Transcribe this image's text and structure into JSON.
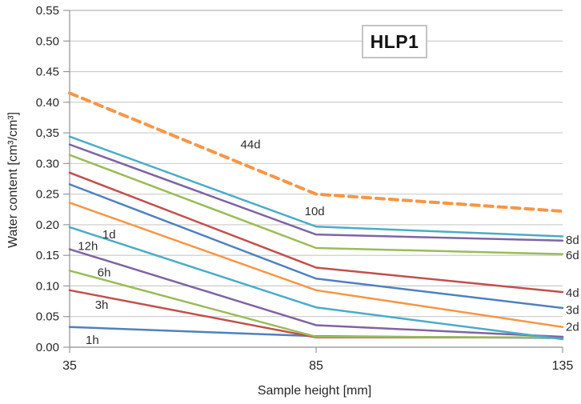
{
  "badge": "HLP1",
  "chart_data": {
    "type": "line",
    "title": "",
    "badge": "HLP1",
    "xlabel": "Sample height [mm]",
    "ylabel": "Water content [cm³/cm³]",
    "x": [
      35,
      85,
      135
    ],
    "x_tick_labels": [
      "35",
      "85",
      "135"
    ],
    "y_tick_labels": [
      "0.00",
      "0.05",
      "0.10",
      "0.15",
      "0.20",
      "0.25",
      "0.30",
      "0,35",
      "0.40",
      "0.45",
      "0.50",
      "0.55"
    ],
    "xlim": [
      35,
      135
    ],
    "ylim": [
      0,
      0.55
    ],
    "grid": "horizontal-only",
    "legend_position": "none",
    "line_label_color": "#2e2e2e",
    "axis_color": "#8f8f8f",
    "gridline_color": "#c9c9c9",
    "top_border_color": "#a3a3a3",
    "tick_text_color": "#262626",
    "series": [
      {
        "name": "1h",
        "color": "#4F81BD",
        "dashed": false,
        "values": [
          0.033,
          0.018,
          0.015
        ],
        "label": {
          "text": "1h",
          "pos": "inline",
          "mm": 39.6,
          "v": 0.012
        }
      },
      {
        "name": "3h",
        "color": "#C0504D",
        "dashed": false,
        "values": [
          0.093,
          0.016,
          0.016
        ],
        "label": {
          "text": "3h",
          "pos": "inline",
          "mm": 41.5,
          "v": 0.069
        }
      },
      {
        "name": "6h",
        "color": "#9BBB59",
        "dashed": false,
        "values": [
          0.125,
          0.017,
          0.016
        ],
        "label": {
          "text": "6h",
          "pos": "inline",
          "mm": 42.0,
          "v": 0.122
        }
      },
      {
        "name": "12h",
        "color": "#8064A2",
        "dashed": false,
        "values": [
          0.16,
          0.036,
          0.017
        ],
        "label": {
          "text": "12h",
          "pos": "inline",
          "mm": 38.7,
          "v": 0.165
        }
      },
      {
        "name": "1d",
        "color": "#4BACC6",
        "dashed": false,
        "values": [
          0.196,
          0.065,
          0.013
        ],
        "label": {
          "text": "1d",
          "pos": "inline",
          "mm": 43.0,
          "v": 0.184
        }
      },
      {
        "name": "2d",
        "color": "#F79646",
        "dashed": false,
        "values": [
          0.236,
          0.093,
          0.033
        ],
        "label": {
          "text": "2d",
          "pos": "right",
          "v": 0.033
        }
      },
      {
        "name": "3d",
        "color": "#4F81BD",
        "dashed": false,
        "values": [
          0.266,
          0.112,
          0.064
        ],
        "label": {
          "text": "3d",
          "pos": "right",
          "v": 0.061
        }
      },
      {
        "name": "4d",
        "color": "#C0504D",
        "dashed": false,
        "values": [
          0.285,
          0.13,
          0.09
        ],
        "label": {
          "text": "4d",
          "pos": "right",
          "v": 0.089
        }
      },
      {
        "name": "6d",
        "color": "#9BBB59",
        "dashed": false,
        "values": [
          0.314,
          0.162,
          0.152
        ],
        "label": {
          "text": "6d",
          "pos": "right",
          "v": 0.15
        }
      },
      {
        "name": "8d",
        "color": "#8064A2",
        "dashed": false,
        "values": [
          0.331,
          0.184,
          0.174
        ],
        "label": {
          "text": "8d",
          "pos": "right",
          "v": 0.175
        }
      },
      {
        "name": "10d",
        "color": "#4BACC6",
        "dashed": false,
        "values": [
          0.344,
          0.197,
          0.181
        ],
        "label": {
          "text": "10d",
          "pos": "inline",
          "mm": 84.7,
          "v": 0.222
        }
      },
      {
        "name": "44d",
        "color": "#F79646",
        "dashed": true,
        "values": [
          0.415,
          0.25,
          0.222
        ],
        "label": {
          "text": "44d",
          "pos": "inline",
          "mm": 71.7,
          "v": 0.331
        }
      }
    ]
  }
}
